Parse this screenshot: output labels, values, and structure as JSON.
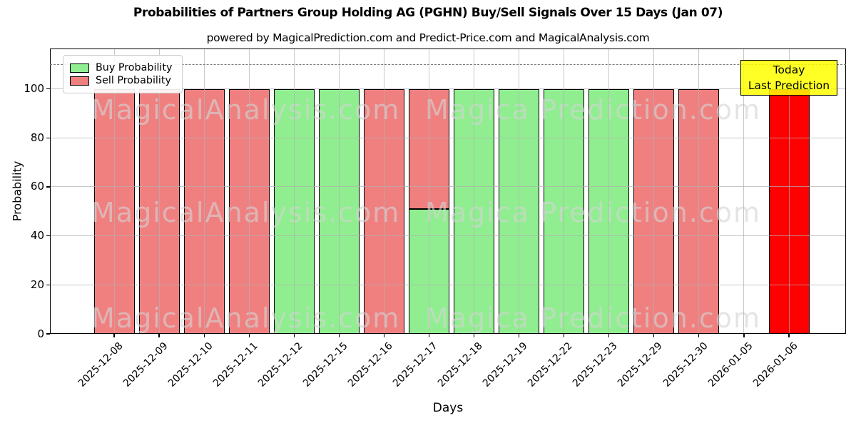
{
  "title": "Probabilities of Partners Group Holding AG (PGHN) Buy/Sell Signals Over 15 Days (Jan 07)",
  "subtitle": "powered by MagicalPrediction.com and Predict-Price.com and MagicalAnalysis.com",
  "legend": {
    "items": [
      {
        "label": "Buy Probability",
        "color": "#90ee90"
      },
      {
        "label": "Sell Probability",
        "color": "#f08080"
      }
    ]
  },
  "annotation": {
    "line1": "Today",
    "line2": "Last Prediction",
    "bg_color": "#ffff00",
    "border_color": "#000000"
  },
  "watermark": {
    "left": "MagicalAnalysis.com",
    "right": "Magica Prediction.com"
  },
  "axes": {
    "xlabel": "Days",
    "ylabel": "Probability"
  },
  "colors": {
    "buy": "#90ee90",
    "sell": "#f08080",
    "today": "#ff0000",
    "grid": "#b0b0b0",
    "dashed_line": "#7a7a7a"
  },
  "chart_data": {
    "type": "bar",
    "stacked": true,
    "title": "Probabilities of Partners Group Holding AG (PGHN) Buy/Sell Signals Over 15 Days (Jan 07)",
    "xlabel": "Days",
    "ylabel": "Probability",
    "categories": [
      "2025-12-08",
      "2025-12-09",
      "2025-12-10",
      "2025-12-11",
      "2025-12-12",
      "2025-12-15",
      "2025-12-16",
      "2025-12-17",
      "2025-12-18",
      "2025-12-19",
      "2025-12-22",
      "2025-12-23",
      "2025-12-29",
      "2025-12-30",
      "2026-01-05",
      "2026-01-06"
    ],
    "series": [
      {
        "name": "Buy Probability",
        "color": "#90ee90",
        "values": [
          0,
          0,
          0,
          0,
          100,
          100,
          0,
          51,
          100,
          100,
          100,
          100,
          0,
          0,
          0,
          0
        ]
      },
      {
        "name": "Sell Probability",
        "color": "#f08080",
        "values": [
          100,
          100,
          100,
          100,
          0,
          0,
          100,
          49,
          0,
          0,
          0,
          0,
          100,
          100,
          0,
          0
        ]
      },
      {
        "name": "Today Last Prediction",
        "color": "#ff0000",
        "values": [
          0,
          0,
          0,
          0,
          0,
          0,
          0,
          0,
          0,
          0,
          0,
          0,
          0,
          0,
          0,
          100
        ]
      }
    ],
    "yticks": [
      0,
      20,
      40,
      60,
      80,
      100
    ],
    "ylim": [
      0,
      116.5
    ],
    "dashed_line_y": 110,
    "grid": true,
    "legend_position": "upper left"
  }
}
